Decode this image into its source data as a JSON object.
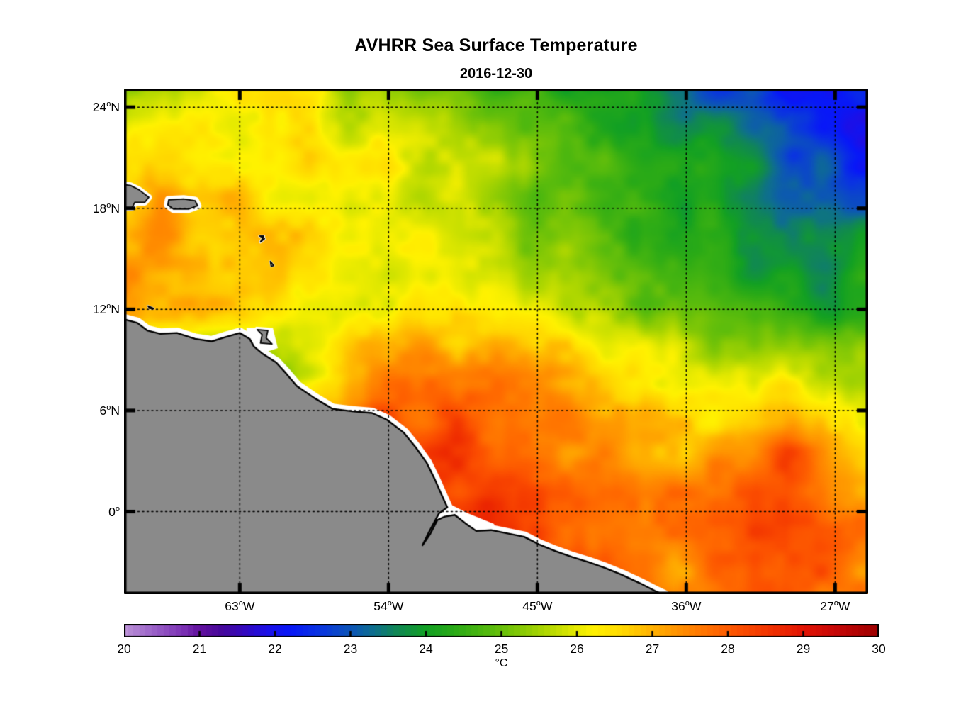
{
  "figure": {
    "title": "AVHRR Sea Surface Temperature",
    "subtitle": "2016-12-30"
  },
  "axes": {
    "x_ticks": [
      {
        "num": "63",
        "deg": "o",
        "hemi": "W",
        "lon": -63
      },
      {
        "num": "54",
        "deg": "o",
        "hemi": "W",
        "lon": -54
      },
      {
        "num": "45",
        "deg": "o",
        "hemi": "W",
        "lon": -45
      },
      {
        "num": "36",
        "deg": "o",
        "hemi": "W",
        "lon": -36
      },
      {
        "num": "27",
        "deg": "o",
        "hemi": "W",
        "lon": -27
      }
    ],
    "y_ticks": [
      {
        "num": "24",
        "deg": "o",
        "hemi": "N",
        "lat": 24
      },
      {
        "num": "18",
        "deg": "o",
        "hemi": "N",
        "lat": 18
      },
      {
        "num": "12",
        "deg": "o",
        "hemi": "N",
        "lat": 12
      },
      {
        "num": "6",
        "deg": "o",
        "hemi": "N",
        "lat": 6
      },
      {
        "num": "0",
        "deg": "o",
        "hemi": "",
        "lat": 0
      }
    ]
  },
  "colorbar": {
    "min": 20,
    "max": 30,
    "unit_label": "°C",
    "tick_labels": [
      "20",
      "21",
      "22",
      "23",
      "24",
      "25",
      "26",
      "27",
      "28",
      "29",
      "30"
    ],
    "inner_tick_values": [
      21,
      22,
      23,
      24,
      25,
      26,
      27,
      28,
      29
    ]
  },
  "chart_data": {
    "type": "heatmap",
    "title": "AVHRR Sea Surface Temperature",
    "date": "2016-12-30",
    "units": "°C",
    "value_range": [
      20,
      30
    ],
    "lon_range": [
      -70,
      -25
    ],
    "lat_range": [
      -4.9,
      25.1
    ],
    "gridline_lons": [
      -63,
      -54,
      -45,
      -36,
      -27
    ],
    "gridline_lats": [
      24,
      18,
      12,
      6,
      0
    ],
    "grid_lons": [
      -70,
      -65,
      -60,
      -55,
      -50,
      -45,
      -40,
      -35,
      -30,
      -25
    ],
    "grid_lats": [
      25.1,
      20.8,
      16.5,
      12.2,
      8.0,
      3.7,
      -0.6,
      -4.9
    ],
    "sst": [
      [
        25.0,
        26.1,
        26.2,
        25.4,
        24.8,
        24.4,
        24.0,
        23.2,
        22.4,
        21.9
      ],
      [
        26.5,
        26.6,
        26.4,
        26.2,
        25.8,
        25.0,
        24.4,
        24.0,
        23.2,
        22.2
      ],
      [
        27.3,
        27.0,
        26.6,
        26.3,
        25.8,
        25.2,
        24.6,
        24.2,
        23.3,
        23.7
      ],
      [
        27.0,
        26.6,
        26.3,
        26.4,
        26.2,
        25.8,
        25.3,
        24.8,
        24.1,
        24.3
      ],
      [
        26.0,
        25.4,
        25.6,
        27.4,
        27.6,
        27.2,
        26.7,
        26.2,
        25.8,
        25.5
      ],
      [
        28.0,
        28.0,
        28.1,
        28.4,
        28.2,
        27.8,
        27.2,
        26.9,
        28.0,
        26.6
      ],
      [
        28.5,
        28.5,
        28.5,
        28.6,
        28.8,
        28.2,
        27.8,
        27.6,
        28.5,
        27.5
      ],
      [
        28.6,
        28.6,
        28.6,
        28.7,
        28.8,
        28.6,
        28.0,
        27.2,
        28.2,
        27.4
      ]
    ],
    "colormap_stops": [
      [
        20.0,
        "#bd93d8"
      ],
      [
        20.4,
        "#9a60c8"
      ],
      [
        20.8,
        "#7a2fb3"
      ],
      [
        21.0,
        "#62119e"
      ],
      [
        21.3,
        "#46089b"
      ],
      [
        21.6,
        "#3309c0"
      ],
      [
        21.9,
        "#1c10e8"
      ],
      [
        22.2,
        "#0818f8"
      ],
      [
        22.6,
        "#0a35e0"
      ],
      [
        23.0,
        "#0c55b8"
      ],
      [
        23.3,
        "#0e6f8e"
      ],
      [
        23.6,
        "#108756"
      ],
      [
        24.0,
        "#12a024"
      ],
      [
        24.4,
        "#2cab16"
      ],
      [
        24.8,
        "#52b90e"
      ],
      [
        25.2,
        "#7fc706"
      ],
      [
        25.6,
        "#b2d800"
      ],
      [
        26.0,
        "#e7ea00"
      ],
      [
        26.2,
        "#fff200"
      ],
      [
        26.6,
        "#ffd900"
      ],
      [
        27.0,
        "#ffb000"
      ],
      [
        27.4,
        "#ff8c00"
      ],
      [
        27.8,
        "#ff6a00"
      ],
      [
        28.2,
        "#fb4c00"
      ],
      [
        28.6,
        "#f02f00"
      ],
      [
        29.0,
        "#e21404"
      ],
      [
        29.4,
        "#c90808"
      ],
      [
        29.8,
        "#ab0202"
      ],
      [
        30.0,
        "#9b0000"
      ]
    ],
    "land_color": "#8a8a8a",
    "coast_outline_color": "#000000",
    "missing_data_color": "#ffffff",
    "coastline": [
      [
        -70.15,
        11.45
      ],
      [
        -69.2,
        11.2
      ],
      [
        -68.6,
        10.75
      ],
      [
        -67.8,
        10.55
      ],
      [
        -66.8,
        10.6
      ],
      [
        -65.7,
        10.25
      ],
      [
        -64.7,
        10.1
      ],
      [
        -63.9,
        10.35
      ],
      [
        -63.0,
        10.6
      ],
      [
        -62.4,
        10.25
      ],
      [
        -62.15,
        9.8
      ],
      [
        -61.6,
        9.35
      ],
      [
        -60.8,
        8.85
      ],
      [
        -60.2,
        8.2
      ],
      [
        -59.55,
        7.45
      ],
      [
        -58.5,
        6.75
      ],
      [
        -57.4,
        6.1
      ],
      [
        -56.2,
        5.95
      ],
      [
        -55.0,
        5.85
      ],
      [
        -54.1,
        5.45
      ],
      [
        -53.1,
        4.7
      ],
      [
        -52.35,
        3.8
      ],
      [
        -51.7,
        2.9
      ],
      [
        -51.2,
        1.9
      ],
      [
        -50.75,
        0.9
      ],
      [
        -50.45,
        0.25
      ],
      [
        -50.95,
        -0.1
      ],
      [
        -51.55,
        -1.2
      ],
      [
        -51.95,
        -2.0
      ],
      [
        -51.5,
        -1.35
      ],
      [
        -51.05,
        -0.5
      ],
      [
        -50.6,
        -0.3
      ],
      [
        -50.0,
        -0.2
      ],
      [
        -49.35,
        -0.7
      ],
      [
        -48.7,
        -1.15
      ],
      [
        -47.8,
        -1.1
      ],
      [
        -46.8,
        -1.3
      ],
      [
        -45.8,
        -1.5
      ],
      [
        -44.9,
        -1.95
      ],
      [
        -43.9,
        -2.35
      ],
      [
        -42.9,
        -2.7
      ],
      [
        -41.9,
        -3.0
      ],
      [
        -40.9,
        -3.35
      ],
      [
        -39.9,
        -3.75
      ],
      [
        -38.8,
        -4.25
      ],
      [
        -37.9,
        -4.7
      ],
      [
        -37.35,
        -4.95
      ]
    ],
    "islands": [
      {
        "name": "hispaniola",
        "halo": 9,
        "pts": [
          [
            -70.3,
            19.45
          ],
          [
            -69.6,
            19.35
          ],
          [
            -69.1,
            19.1
          ],
          [
            -68.5,
            18.65
          ],
          [
            -68.75,
            18.35
          ],
          [
            -69.35,
            18.35
          ],
          [
            -69.5,
            18.05
          ],
          [
            -70.3,
            18.0
          ]
        ]
      },
      {
        "name": "puerto-rico",
        "halo": 11,
        "pts": [
          [
            -67.3,
            18.5
          ],
          [
            -66.4,
            18.55
          ],
          [
            -65.7,
            18.45
          ],
          [
            -65.55,
            18.15
          ],
          [
            -66.1,
            17.95
          ],
          [
            -67.0,
            17.95
          ],
          [
            -67.35,
            18.2
          ]
        ]
      },
      {
        "name": "trinidad",
        "halo": 8,
        "pts": [
          [
            -61.95,
            10.8
          ],
          [
            -61.3,
            10.75
          ],
          [
            -61.4,
            10.3
          ],
          [
            -61.05,
            9.95
          ],
          [
            -61.75,
            10.0
          ],
          [
            -61.65,
            10.5
          ]
        ]
      },
      {
        "name": "guadeloupe",
        "halo": 4,
        "pts": [
          [
            -61.8,
            16.35
          ],
          [
            -61.5,
            16.2
          ],
          [
            -61.75,
            16.0
          ],
          [
            -61.55,
            16.35
          ]
        ]
      },
      {
        "name": "martinique",
        "halo": 3,
        "pts": [
          [
            -61.15,
            14.85
          ],
          [
            -60.95,
            14.6
          ],
          [
            -61.1,
            14.55
          ]
        ]
      },
      {
        "name": "bonaire",
        "halo": 3,
        "pts": [
          [
            -68.55,
            12.2
          ],
          [
            -68.2,
            12.05
          ],
          [
            -68.45,
            12.05
          ]
        ]
      }
    ],
    "missing_patches": [
      [
        [
          -52.1,
          0.1
        ],
        [
          -50.4,
          0.5
        ],
        [
          -49.2,
          -0.1
        ],
        [
          -47.6,
          -0.75
        ],
        [
          -48.3,
          -1.7
        ],
        [
          -50.3,
          -1.3
        ],
        [
          -51.9,
          -2.3
        ],
        [
          -52.4,
          -1.2
        ]
      ],
      [
        [
          -62.6,
          10.9
        ],
        [
          -61.0,
          10.9
        ],
        [
          -60.7,
          9.7
        ],
        [
          -61.9,
          9.3
        ],
        [
          -62.5,
          9.9
        ]
      ]
    ]
  }
}
